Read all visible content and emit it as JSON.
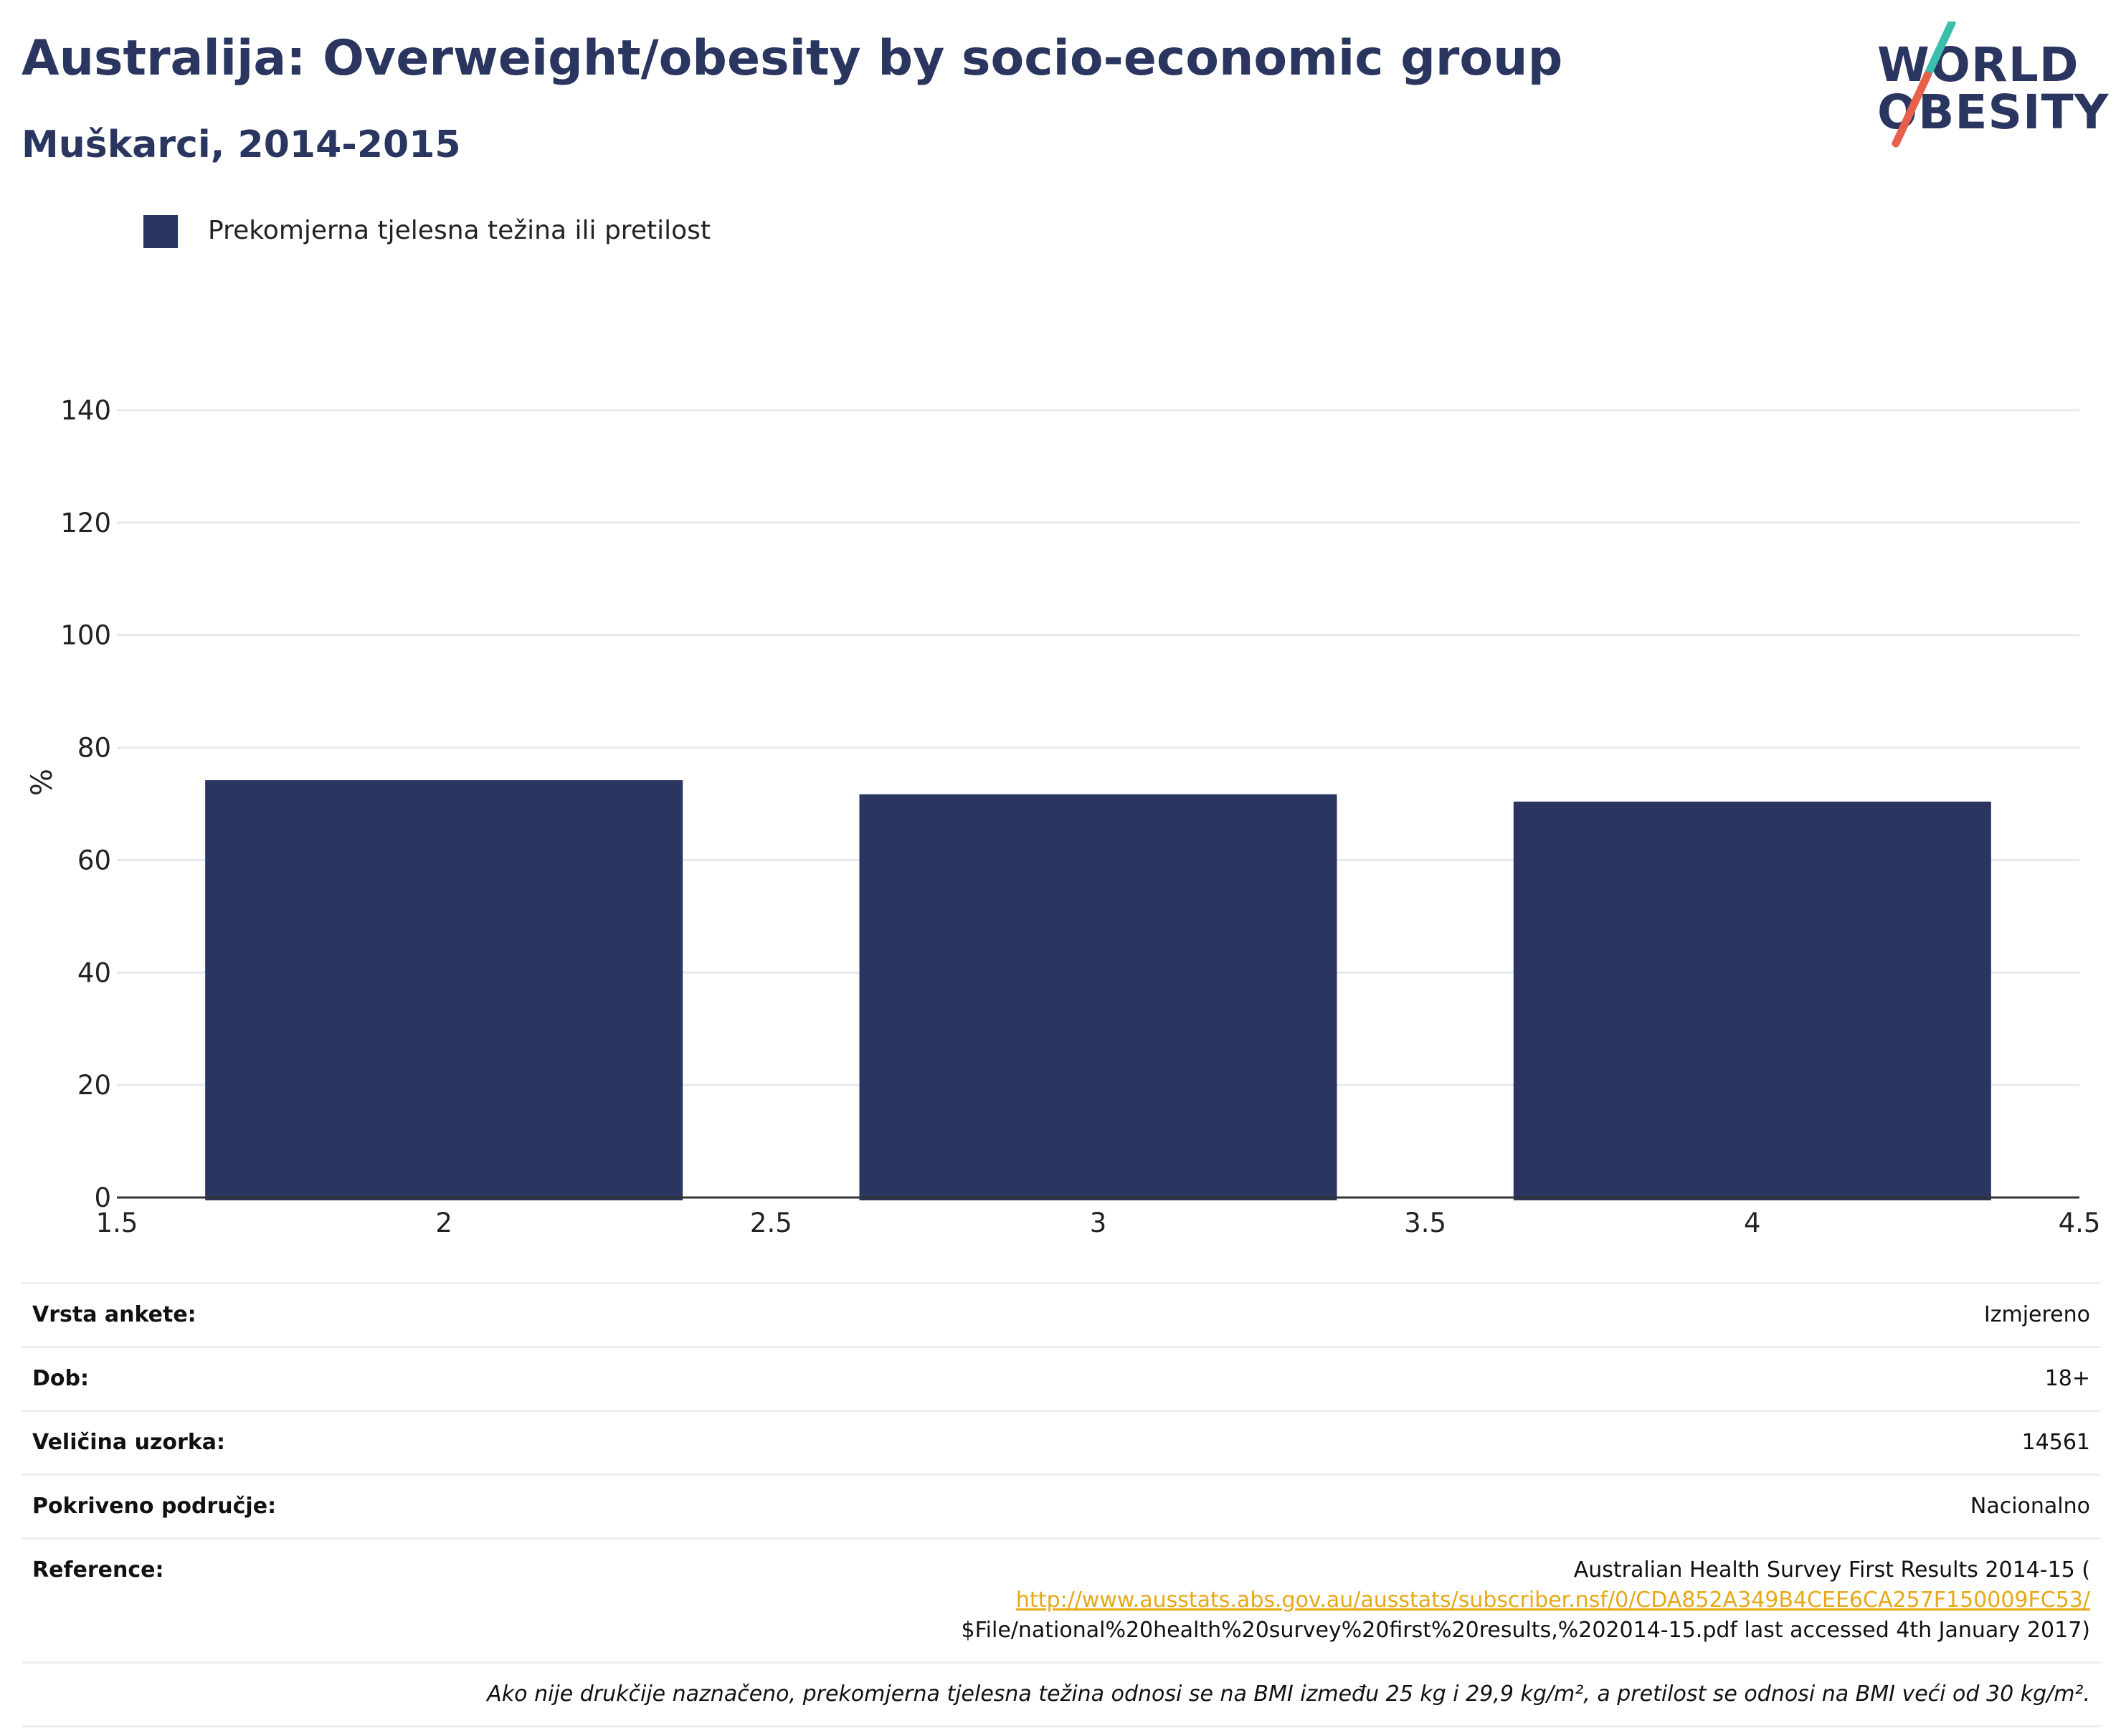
{
  "header": {
    "title": "Australija: Overweight/obesity by socio-economic group",
    "subtitle": "Muškarci, 2014-2015"
  },
  "logo": {
    "line1": "WORLD",
    "line2": "OBESITY",
    "colors": {
      "text": "#2a3560",
      "slash_top": "#3bbfad",
      "slash_bottom": "#e8604c"
    }
  },
  "legend": {
    "label": "Prekomjerna tjelesna težina ili pretilost",
    "color": "#2a3560"
  },
  "chart_data": {
    "type": "bar",
    "x": [
      2,
      3,
      4
    ],
    "series": [
      {
        "name": "Prekomjerna tjelesna težina ili pretilost",
        "values": [
          74.2,
          71.7,
          70.4
        ],
        "color": "#2a3560"
      }
    ],
    "bar_width": 0.73,
    "xlim": [
      1.5,
      4.5
    ],
    "xticks": [
      "1.5",
      "2",
      "2.5",
      "3",
      "3.5",
      "4",
      "4.5"
    ],
    "ylim": [
      0,
      140
    ],
    "yticks": [
      "0",
      "20",
      "40",
      "60",
      "80",
      "100",
      "120",
      "140"
    ],
    "ylabel": "%",
    "xlabel": "",
    "grid": true,
    "legend_position": "top-left"
  },
  "info": {
    "survey_type_label": "Vrsta ankete:",
    "survey_type_value": "Izmjereno",
    "age_label": "Dob:",
    "age_value": "18+",
    "sample_label": "Veličina uzorka:",
    "sample_value": "14561",
    "coverage_label": "Pokriveno područje:",
    "coverage_value": "Nacionalno",
    "reference_label": "Reference:",
    "reference_line1": "Australian Health Survey First Results 2014-15 (",
    "reference_link": "http://www.ausstats.abs.gov.au/ausstats/subscriber.nsf/0/CDA852A349B4CEE6CA257F150009FC53/",
    "reference_line3": "$File/national%20health%20survey%20first%20results,%202014-15.pdf last accessed 4th January 2017)",
    "note": "Ako nije drukčije naznačeno, prekomjerna tjelesna težina odnosi se na BMI između 25 kg i 29,9 kg/m², a pretilost se odnosi na BMI veći od 30 kg/m²."
  }
}
